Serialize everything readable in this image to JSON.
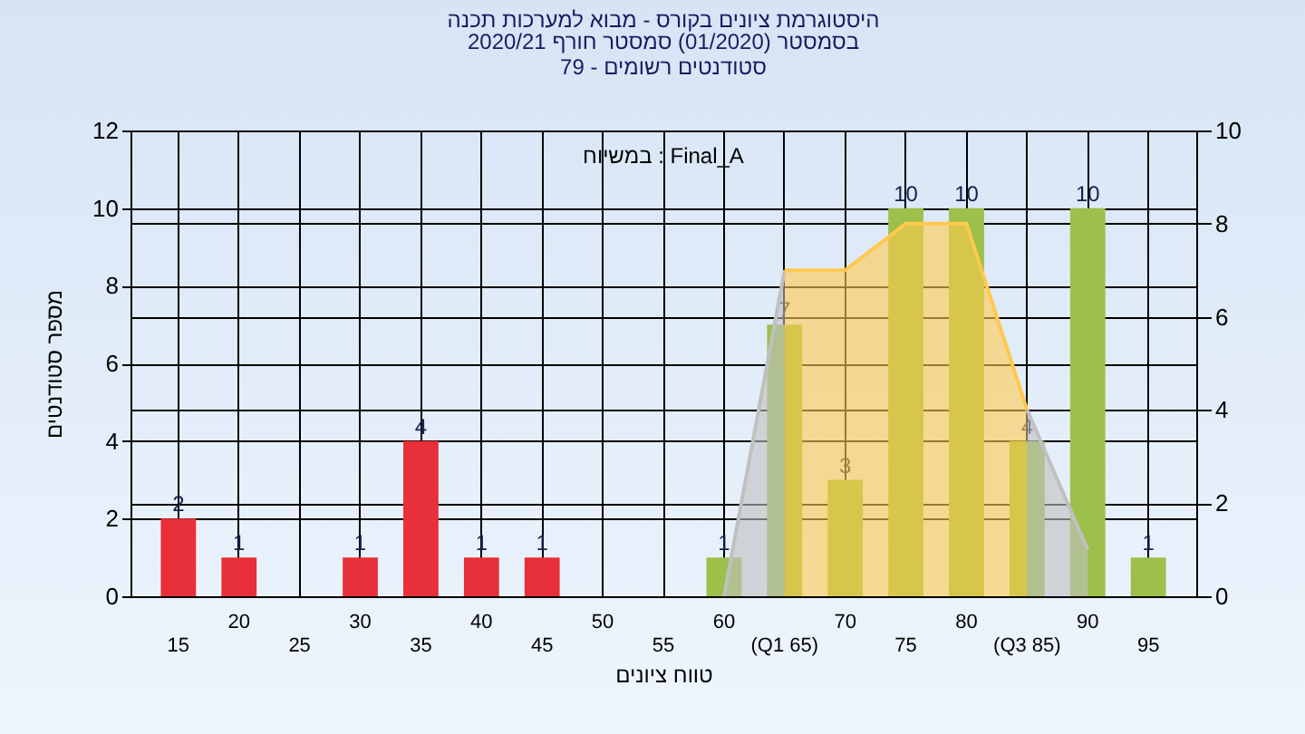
{
  "chart_data": {
    "type": "bar",
    "title": "היסטוגרמת ציונים בקורס - מבוא למערכות תכנה",
    "subtitle": "בסמסטר  (01/2020)  סמסטר חורף 2020/21\nסטודנטים רשומים - 79",
    "xlabel": "טווח ציונים",
    "ylabel": "מספר סטודנטים",
    "annotations": [
      "במשיוח : Final_A"
    ],
    "categories": [
      "15",
      "20",
      "25",
      "30",
      "35",
      "40",
      "45",
      "50",
      "55",
      "60",
      "(Q1 65)",
      "70",
      "75",
      "80",
      "(Q3 85)",
      "90",
      "95"
    ],
    "ylim": [
      0,
      12
    ],
    "yticks": [
      0,
      2,
      4,
      6,
      8,
      10,
      12
    ],
    "y2lim": [
      0,
      10
    ],
    "y2ticks": [
      0,
      2,
      4,
      6,
      8,
      10
    ],
    "grid": true,
    "series": [
      {
        "type": "area",
        "axis": "y2",
        "color": "#c0c0c0",
        "x": [
          "60",
          "(Q1 65)"
        ],
        "values": [
          0,
          7
        ]
      },
      {
        "type": "area",
        "axis": "y2",
        "color": "#ffc94f",
        "x": [
          "(Q1 65)",
          "70",
          "75",
          "80",
          "(Q3 85)"
        ],
        "values": [
          7,
          7,
          8,
          8,
          4
        ]
      },
      {
        "type": "area",
        "axis": "y2",
        "color": "#c0c0c0",
        "x": [
          "(Q3 85)",
          "90"
        ],
        "values": [
          4,
          1
        ]
      },
      {
        "values": [
          2,
          1,
          0,
          1,
          4,
          1,
          1,
          0,
          0,
          1,
          7,
          3,
          10,
          10,
          4,
          10,
          1
        ],
        "colors": [
          "#e8303a",
          "#e8303a",
          "#e8303a",
          "#e8303a",
          "#e8303a",
          "#e8303a",
          "#e8303a",
          "#e8303a",
          "#e8303a",
          "#9cc04a",
          "#9cc04a",
          "#9cc04a",
          "#9cc04a",
          "#9cc04a",
          "#9cc04a",
          "#9cc04a",
          "#9cc04a"
        ],
        "value_labels": [
          "2",
          "1",
          null,
          "1",
          "4",
          "1",
          "1",
          null,
          null,
          "1",
          "7",
          "3",
          "10",
          "10",
          "4",
          "10",
          "1"
        ]
      }
    ]
  }
}
